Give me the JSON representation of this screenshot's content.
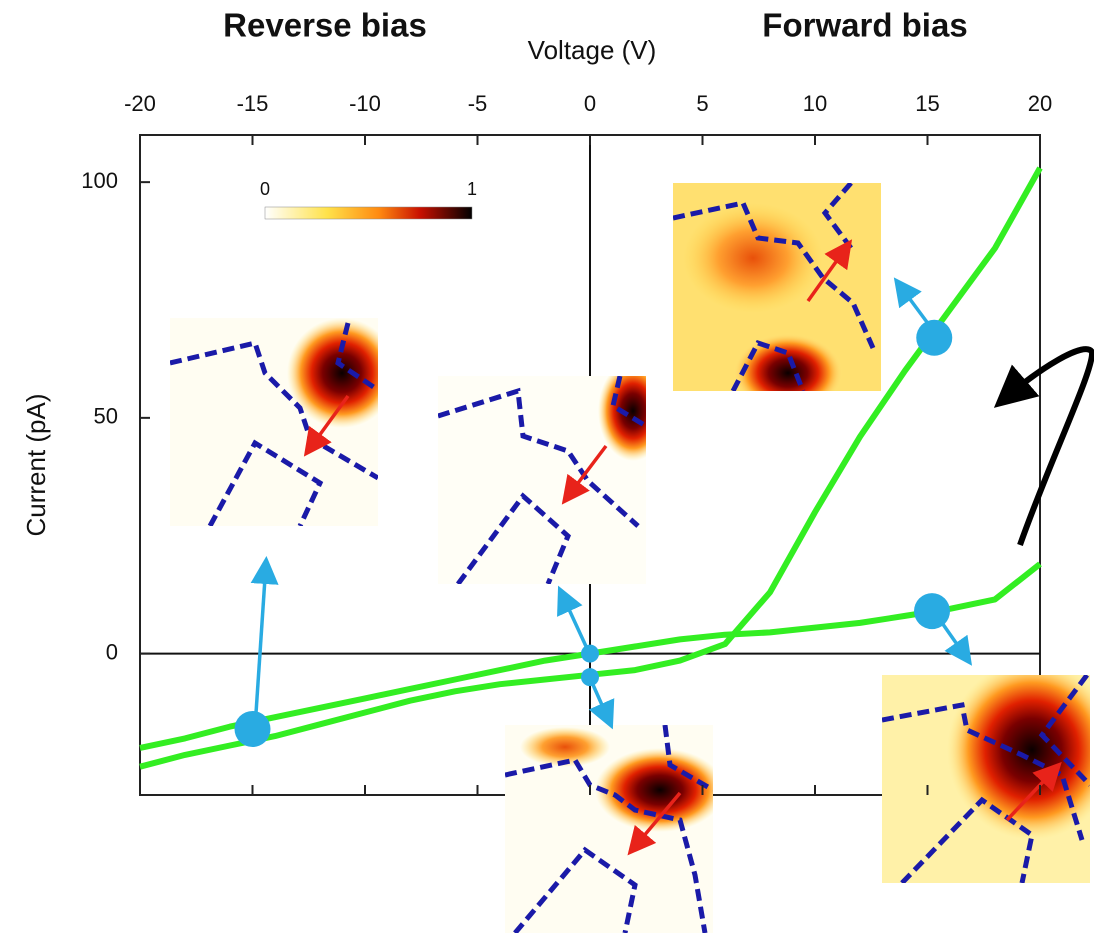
{
  "chart_data": {
    "type": "line",
    "title_left": "Reverse bias",
    "title_right": "Forward bias",
    "x_label": "Voltage (V)",
    "y_label": "Current (pA)",
    "x": [
      -20,
      -18,
      -16,
      -14,
      -12,
      -10,
      -8,
      -6,
      -4,
      -2,
      0,
      2,
      4,
      6,
      8,
      10,
      12,
      14,
      16,
      18,
      20
    ],
    "series": [
      {
        "color": "#33ee22",
        "values": [
          -24,
          -21.5,
          -19.5,
          -17.5,
          -15,
          -12.5,
          -10,
          -8,
          -6.5,
          -5.5,
          -4.5,
          -3.5,
          -1.5,
          2,
          13,
          30,
          46,
          60,
          73,
          86,
          103
        ]
      },
      {
        "color": "#33ee22",
        "values": [
          -20,
          -18,
          -15.5,
          -13.5,
          -11.5,
          -9.5,
          -7.5,
          -5.5,
          -3.5,
          -1.5,
          0,
          1.5,
          3,
          4,
          4.5,
          5.5,
          6.5,
          8,
          9.5,
          11.5,
          19
        ]
      }
    ],
    "markers": {
      "color": "#29abe2",
      "x": [
        -15,
        0,
        0,
        15.3,
        15.2
      ],
      "y": [
        -16,
        0,
        -5,
        67,
        9
      ]
    },
    "colorbar": {
      "ticks": [
        0,
        1
      ]
    },
    "xlim": [
      -20,
      20
    ],
    "xticks": [
      -20,
      -15,
      -10,
      -5,
      0,
      5,
      10,
      15,
      20
    ],
    "ylim": [
      -30,
      110
    ],
    "yticks": [
      0,
      50,
      100
    ]
  }
}
